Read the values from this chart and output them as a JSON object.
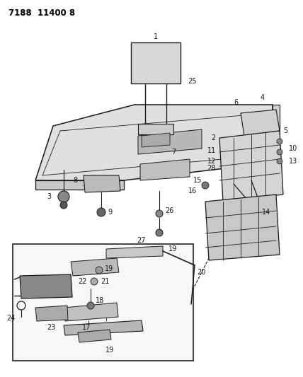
{
  "title": "7188  11400 8",
  "bg_color": "#ffffff",
  "fig_width": 4.28,
  "fig_height": 5.33,
  "dpi": 100,
  "line_color": "#1a1a1a",
  "label_fontsize": 7.0,
  "label_color": "#1a1a1a",
  "title_fontsize": 8.5
}
